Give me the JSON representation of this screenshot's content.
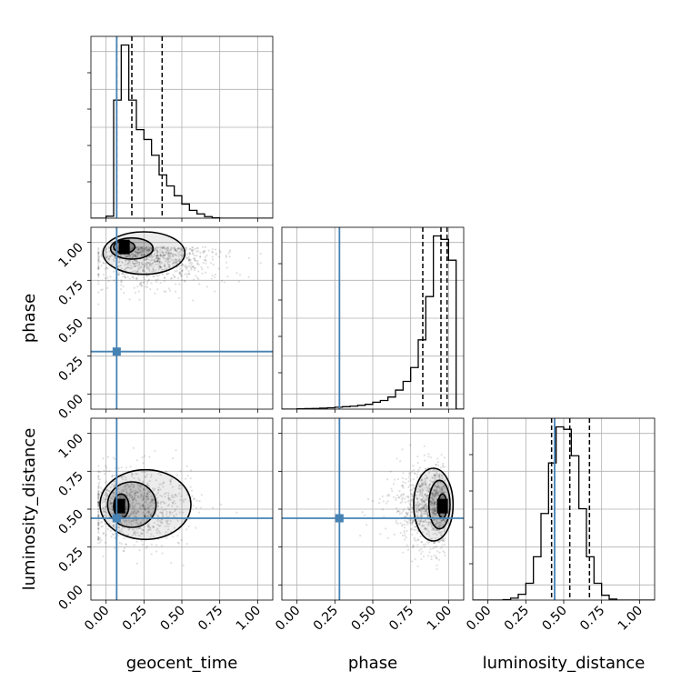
{
  "chart_data": {
    "type": "corner",
    "parameters": [
      "geocent_time",
      "phase",
      "luminosity_distance"
    ],
    "axis_labels": {
      "bottom": [
        "geocent_time",
        "phase",
        "luminosity_distance"
      ],
      "left": [
        "phase",
        "luminosity_distance"
      ]
    },
    "range": [
      -0.1,
      1.1
    ],
    "tick_values": [
      0,
      0.25,
      0.5,
      0.75,
      1
    ],
    "tick_labels": [
      "0.00",
      "0.25",
      "0.50",
      "0.75",
      "1.00"
    ],
    "grid": true,
    "truths": {
      "geocent_time": 0.07,
      "phase": 0.28,
      "luminosity_distance": 0.44
    },
    "truth_color": "#4682b4",
    "histograms": {
      "geocent_time": {
        "bin_edges": [
          -0.1,
          -0.05,
          0.0,
          0.05,
          0.1,
          0.15,
          0.2,
          0.25,
          0.3,
          0.35,
          0.4,
          0.45,
          0.5,
          0.55,
          0.6,
          0.65,
          0.7,
          0.75,
          0.8,
          0.85,
          0.9,
          0.95,
          1.0,
          1.05,
          1.1
        ],
        "counts": [
          0,
          0,
          5,
          300,
          440,
          300,
          225,
          200,
          160,
          110,
          82,
          57,
          36,
          20,
          11,
          4,
          1,
          0,
          0,
          0,
          0,
          0,
          0,
          0
        ],
        "quantiles": [
          0.07,
          0.17,
          0.37
        ]
      },
      "phase": {
        "bin_edges": [
          -0.1,
          -0.05,
          0.0,
          0.05,
          0.1,
          0.15,
          0.2,
          0.25,
          0.3,
          0.35,
          0.4,
          0.45,
          0.5,
          0.55,
          0.6,
          0.65,
          0.7,
          0.75,
          0.8,
          0.85,
          0.9,
          0.95,
          1.0,
          1.05,
          1.1
        ],
        "counts": [
          0,
          0,
          2,
          3,
          4,
          6,
          8,
          11,
          14,
          17,
          22,
          28,
          40,
          50,
          70,
          110,
          160,
          240,
          400,
          650,
          1000,
          980,
          860,
          0
        ],
        "quantiles": [
          0.83,
          0.95,
          0.99
        ]
      },
      "luminosity_distance": {
        "bin_edges": [
          -0.1,
          -0.05,
          0.0,
          0.05,
          0.1,
          0.15,
          0.2,
          0.25,
          0.3,
          0.35,
          0.4,
          0.45,
          0.5,
          0.55,
          0.6,
          0.65,
          0.7,
          0.75,
          0.8,
          0.85,
          0.9,
          0.95,
          1.0,
          1.05,
          1.1
        ],
        "counts": [
          0,
          0,
          0,
          0,
          1,
          4,
          12,
          35,
          90,
          180,
          285,
          360,
          355,
          300,
          190,
          90,
          35,
          10,
          2,
          0,
          0,
          0,
          0,
          0
        ],
        "quantiles": [
          0.42,
          0.54,
          0.67
        ]
      }
    },
    "scatter_panels": [
      {
        "x": "geocent_time",
        "y": "phase",
        "mode": {
          "x": 0.12,
          "y": 0.97
        },
        "contours": [
          {
            "x": 0.12,
            "y": 0.97,
            "rx": 0.07,
            "ry": 0.04,
            "tail": 0.0
          },
          {
            "x": 0.17,
            "y": 0.96,
            "rx": 0.14,
            "ry": 0.07,
            "tail": 0.12
          },
          {
            "x": 0.25,
            "y": 0.93,
            "rx": 0.27,
            "ry": 0.14,
            "tail": 0.22
          }
        ]
      },
      {
        "x": "geocent_time",
        "y": "luminosity_distance",
        "mode": {
          "x": 0.09,
          "y": 0.52
        },
        "contours": [
          {
            "x": 0.1,
            "y": 0.52,
            "rx": 0.05,
            "ry": 0.08,
            "tail": 0.0
          },
          {
            "x": 0.17,
            "y": 0.53,
            "rx": 0.16,
            "ry": 0.15,
            "tail": 0.1
          },
          {
            "x": 0.26,
            "y": 0.53,
            "rx": 0.3,
            "ry": 0.23,
            "tail": 0.12
          }
        ]
      },
      {
        "x": "phase",
        "y": "luminosity_distance",
        "mode": {
          "x": 0.96,
          "y": 0.52
        },
        "contours": [
          {
            "x": 0.96,
            "y": 0.52,
            "rx": 0.03,
            "ry": 0.08,
            "tail": 0.0
          },
          {
            "x": 0.94,
            "y": 0.53,
            "rx": 0.07,
            "ry": 0.16,
            "tail": 0.04
          },
          {
            "x": 0.9,
            "y": 0.53,
            "rx": 0.13,
            "ry": 0.24,
            "tail": 0.06
          }
        ]
      }
    ]
  }
}
